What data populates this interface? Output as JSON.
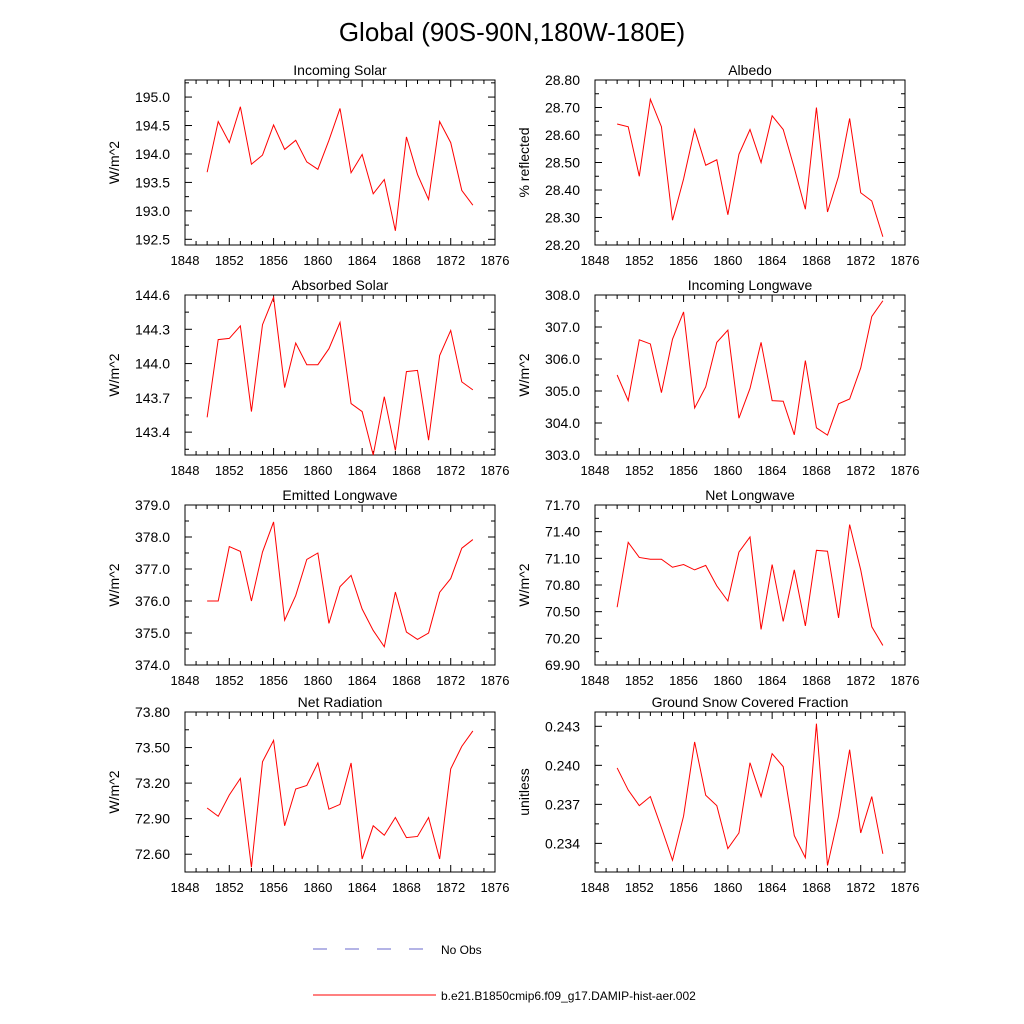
{
  "page": {
    "title": "Global (90S-90N,180W-180E)"
  },
  "legend": {
    "no_obs_label": "No Obs",
    "no_obs_color": "#6a6acd",
    "model_label": "b.e21.B1850cmip6.f09_g17.DAMIP-hist-aer.002",
    "model_color": "#ff0000"
  },
  "chart_data": [
    {
      "type": "line",
      "title": "Incoming Solar",
      "ylabel": "W/m^2",
      "xlim": [
        1848,
        1876
      ],
      "xticks": [
        "1848",
        "1852",
        "1856",
        "1860",
        "1864",
        "1868",
        "1872",
        "1876"
      ],
      "ylim": [
        192.4,
        195.3
      ],
      "yticks": [
        "192.5",
        "193.0",
        "193.5",
        "194.0",
        "194.5",
        "195.0"
      ],
      "x": [
        1850,
        1851,
        1852,
        1853,
        1854,
        1855,
        1856,
        1857,
        1858,
        1859,
        1860,
        1861,
        1862,
        1863,
        1864,
        1865,
        1866,
        1867,
        1868,
        1869,
        1870,
        1871,
        1872,
        1873,
        1874
      ],
      "series": [
        {
          "values": [
            193.68,
            194.57,
            194.2,
            194.83,
            193.82,
            193.98,
            194.51,
            194.08,
            194.24,
            193.86,
            193.73,
            194.24,
            194.8,
            193.67,
            193.99,
            193.3,
            193.55,
            192.65,
            194.3,
            193.64,
            193.2,
            194.57,
            194.2,
            193.36,
            193.1
          ]
        }
      ]
    },
    {
      "type": "line",
      "title": "Albedo",
      "ylabel": "% reflected",
      "xlim": [
        1848,
        1876
      ],
      "xticks": [
        "1848",
        "1852",
        "1856",
        "1860",
        "1864",
        "1868",
        "1872",
        "1876"
      ],
      "ylim": [
        28.2,
        28.8
      ],
      "yticks": [
        "28.20",
        "28.30",
        "28.40",
        "28.50",
        "28.60",
        "28.70",
        "28.80"
      ],
      "x": [
        1850,
        1851,
        1852,
        1853,
        1854,
        1855,
        1856,
        1857,
        1858,
        1859,
        1860,
        1861,
        1862,
        1863,
        1864,
        1865,
        1866,
        1867,
        1868,
        1869,
        1870,
        1871,
        1872,
        1873,
        1874
      ],
      "series": [
        {
          "values": [
            28.64,
            28.63,
            28.45,
            28.73,
            28.63,
            28.29,
            28.44,
            28.62,
            28.49,
            28.51,
            28.31,
            28.53,
            28.62,
            28.5,
            28.67,
            28.62,
            28.48,
            28.33,
            28.7,
            28.32,
            28.45,
            28.66,
            28.39,
            28.36,
            28.23
          ]
        }
      ]
    },
    {
      "type": "line",
      "title": "Absorbed Solar",
      "ylabel": "W/m^2",
      "xlim": [
        1848,
        1876
      ],
      "xticks": [
        "1848",
        "1852",
        "1856",
        "1860",
        "1864",
        "1868",
        "1872",
        "1876"
      ],
      "ylim": [
        143.2,
        144.6
      ],
      "yticks": [
        "143.4",
        "143.7",
        "144.0",
        "144.3",
        "144.6"
      ],
      "x": [
        1850,
        1851,
        1852,
        1853,
        1854,
        1855,
        1856,
        1857,
        1858,
        1859,
        1860,
        1861,
        1862,
        1863,
        1864,
        1865,
        1866,
        1867,
        1868,
        1869,
        1870,
        1871,
        1872,
        1873,
        1874
      ],
      "series": [
        {
          "values": [
            143.53,
            144.21,
            144.22,
            144.33,
            143.58,
            144.34,
            144.58,
            143.79,
            144.18,
            143.99,
            143.99,
            144.13,
            144.36,
            143.65,
            143.58,
            143.2,
            143.71,
            143.24,
            143.93,
            143.94,
            143.33,
            144.07,
            144.29,
            143.84,
            143.77
          ]
        }
      ]
    },
    {
      "type": "line",
      "title": "Incoming Longwave",
      "ylabel": "W/m^2",
      "xlim": [
        1848,
        1876
      ],
      "xticks": [
        "1848",
        "1852",
        "1856",
        "1860",
        "1864",
        "1868",
        "1872",
        "1876"
      ],
      "ylim": [
        303.0,
        308.0
      ],
      "yticks": [
        "303.0",
        "304.0",
        "305.0",
        "306.0",
        "307.0",
        "308.0"
      ],
      "x": [
        1850,
        1851,
        1852,
        1853,
        1854,
        1855,
        1856,
        1857,
        1858,
        1859,
        1860,
        1861,
        1862,
        1863,
        1864,
        1865,
        1866,
        1867,
        1868,
        1869,
        1870,
        1871,
        1872,
        1873,
        1874
      ],
      "series": [
        {
          "values": [
            305.5,
            304.7,
            306.6,
            306.47,
            304.95,
            306.62,
            307.47,
            304.47,
            305.13,
            306.52,
            306.9,
            304.15,
            305.08,
            306.52,
            304.7,
            304.68,
            303.63,
            305.95,
            303.85,
            303.62,
            304.6,
            304.75,
            305.72,
            307.33,
            307.82
          ]
        }
      ]
    },
    {
      "type": "line",
      "title": "Emitted Longwave",
      "ylabel": "W/m^2",
      "xlim": [
        1848,
        1876
      ],
      "xticks": [
        "1848",
        "1852",
        "1856",
        "1860",
        "1864",
        "1868",
        "1872",
        "1876"
      ],
      "ylim": [
        374.0,
        379.0
      ],
      "yticks": [
        "374.0",
        "375.0",
        "376.0",
        "377.0",
        "378.0",
        "379.0"
      ],
      "x": [
        1850,
        1851,
        1852,
        1853,
        1854,
        1855,
        1856,
        1857,
        1858,
        1859,
        1860,
        1861,
        1862,
        1863,
        1864,
        1865,
        1866,
        1867,
        1868,
        1869,
        1870,
        1871,
        1872,
        1873,
        1874
      ],
      "series": [
        {
          "values": [
            376.0,
            376.0,
            377.7,
            377.55,
            376.0,
            377.53,
            378.47,
            375.4,
            376.17,
            377.3,
            377.5,
            375.3,
            376.45,
            376.8,
            375.75,
            375.08,
            374.57,
            376.28,
            375.03,
            374.8,
            375.0,
            376.27,
            376.7,
            377.65,
            377.92
          ]
        }
      ]
    },
    {
      "type": "line",
      "title": "Net Longwave",
      "ylabel": "W/m^2",
      "xlim": [
        1848,
        1876
      ],
      "xticks": [
        "1848",
        "1852",
        "1856",
        "1860",
        "1864",
        "1868",
        "1872",
        "1876"
      ],
      "ylim": [
        69.9,
        71.7
      ],
      "yticks": [
        "69.90",
        "70.20",
        "70.50",
        "70.80",
        "71.10",
        "71.40",
        "71.70"
      ],
      "x": [
        1850,
        1851,
        1852,
        1853,
        1854,
        1855,
        1856,
        1857,
        1858,
        1859,
        1860,
        1861,
        1862,
        1863,
        1864,
        1865,
        1866,
        1867,
        1868,
        1869,
        1870,
        1871,
        1872,
        1873,
        1874
      ],
      "series": [
        {
          "values": [
            70.55,
            71.28,
            71.11,
            71.09,
            71.09,
            71.0,
            71.03,
            70.97,
            71.02,
            70.79,
            70.62,
            71.17,
            71.34,
            70.3,
            71.03,
            70.39,
            70.97,
            70.34,
            71.19,
            71.18,
            70.43,
            71.48,
            70.97,
            70.33,
            70.12
          ]
        }
      ]
    },
    {
      "type": "line",
      "title": "Net Radiation",
      "ylabel": "W/m^2",
      "xlim": [
        1848,
        1876
      ],
      "xticks": [
        "1848",
        "1852",
        "1856",
        "1860",
        "1864",
        "1868",
        "1872",
        "1876"
      ],
      "ylim": [
        72.45,
        73.8
      ],
      "yticks": [
        "72.60",
        "72.90",
        "73.20",
        "73.50",
        "73.80"
      ],
      "x": [
        1850,
        1851,
        1852,
        1853,
        1854,
        1855,
        1856,
        1857,
        1858,
        1859,
        1860,
        1861,
        1862,
        1863,
        1864,
        1865,
        1866,
        1867,
        1868,
        1869,
        1870,
        1871,
        1872,
        1873,
        1874
      ],
      "series": [
        {
          "values": [
            72.99,
            72.92,
            73.1,
            73.24,
            72.49,
            73.38,
            73.56,
            72.84,
            73.15,
            73.18,
            73.37,
            72.98,
            73.02,
            73.37,
            72.56,
            72.84,
            72.76,
            72.91,
            72.74,
            72.75,
            72.91,
            72.56,
            73.32,
            73.51,
            73.64
          ]
        }
      ]
    },
    {
      "type": "line",
      "title": "Ground Snow Covered Fraction",
      "ylabel": "unitless",
      "xlim": [
        1848,
        1876
      ],
      "xticks": [
        "1848",
        "1852",
        "1856",
        "1860",
        "1864",
        "1868",
        "1872",
        "1876"
      ],
      "ylim": [
        0.2318,
        0.2441
      ],
      "yticks": [
        "0.234",
        "0.237",
        "0.240",
        "0.243"
      ],
      "x": [
        1850,
        1851,
        1852,
        1853,
        1854,
        1855,
        1856,
        1857,
        1858,
        1859,
        1860,
        1861,
        1862,
        1863,
        1864,
        1865,
        1866,
        1867,
        1868,
        1869,
        1870,
        1871,
        1872,
        1873,
        1874
      ],
      "series": [
        {
          "values": [
            0.2398,
            0.2381,
            0.2369,
            0.2376,
            0.2352,
            0.2327,
            0.2361,
            0.2418,
            0.2377,
            0.2369,
            0.2336,
            0.2348,
            0.2402,
            0.2376,
            0.2409,
            0.2399,
            0.2346,
            0.2329,
            0.2432,
            0.2323,
            0.2361,
            0.2412,
            0.2348,
            0.2376,
            0.2332
          ]
        }
      ]
    }
  ]
}
